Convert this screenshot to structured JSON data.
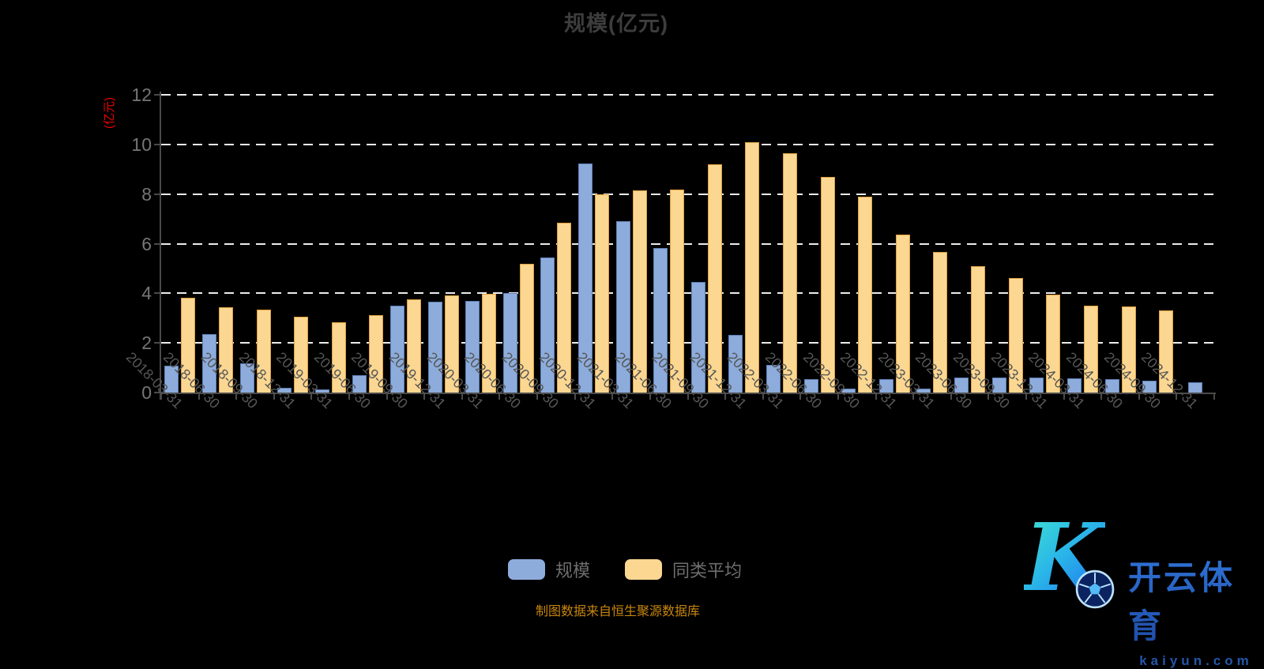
{
  "title": "规模(亿元)",
  "y_axis_name": "(亿元)",
  "footer": "制图数据来自恒生聚源数据库",
  "legend": {
    "scale_label": "规模",
    "average_label": "同类平均"
  },
  "logo": {
    "monogram": "K",
    "wordmark": "开云体育",
    "domain": "kaiyun.com"
  },
  "colors": {
    "background": "#000000",
    "title_text": "#3d3d3d",
    "axis_line": "#4a4a4a",
    "grid_line": "#ececec",
    "y_axis_name_red": "#ee0000",
    "scale_fill": "#8dacdb",
    "scale_border": "#5d7fb5",
    "average_fill": "#fbd792",
    "average_border": "#dfa13c",
    "footer_text": "#c8860d"
  },
  "chart_data": {
    "type": "bar",
    "title": "规模(亿元)",
    "xlabel": "",
    "ylabel": "(亿元)",
    "ylim": [
      0,
      12
    ],
    "y_ticks": [
      0,
      2,
      4,
      6,
      8,
      10,
      12
    ],
    "grid": "horizontal dashed white lines",
    "legend_position": "bottom",
    "categories": [
      "2018-03-31",
      "2018-06-30",
      "2018-09-30",
      "2018-12-31",
      "2019-03-31",
      "2019-06-30",
      "2019-09-30",
      "2019-12-31",
      "2020-03-31",
      "2020-06-30",
      "2020-09-30",
      "2020-12-31",
      "2021-03-31",
      "2021-06-30",
      "2021-09-30",
      "2021-12-31",
      "2022-03-31",
      "2022-06-30",
      "2022-09-30",
      "2022-12-31",
      "2023-03-31",
      "2023-06-30",
      "2023-09-30",
      "2023-12-31",
      "2024-03-31",
      "2024-06-30",
      "2024-09-30",
      "2024-12-31"
    ],
    "series": [
      {
        "name": "规模",
        "values": [
          1.08,
          2.35,
          1.19,
          0.18,
          0.13,
          0.7,
          3.5,
          3.65,
          3.7,
          4.0,
          5.44,
          9.23,
          6.92,
          5.81,
          4.46,
          2.34,
          1.1,
          0.55,
          0.15,
          0.55,
          0.15,
          0.61,
          0.61,
          0.59,
          0.57,
          0.55,
          0.47,
          0.42
        ]
      },
      {
        "name": "同类平均",
        "values": [
          3.81,
          3.44,
          3.33,
          3.07,
          2.83,
          3.12,
          3.76,
          3.93,
          3.97,
          5.2,
          6.84,
          7.98,
          8.14,
          8.19,
          9.19,
          10.1,
          9.66,
          8.7,
          7.88,
          6.38,
          5.67,
          5.08,
          4.62,
          3.95,
          3.49,
          3.47,
          3.31,
          null
        ]
      }
    ]
  }
}
